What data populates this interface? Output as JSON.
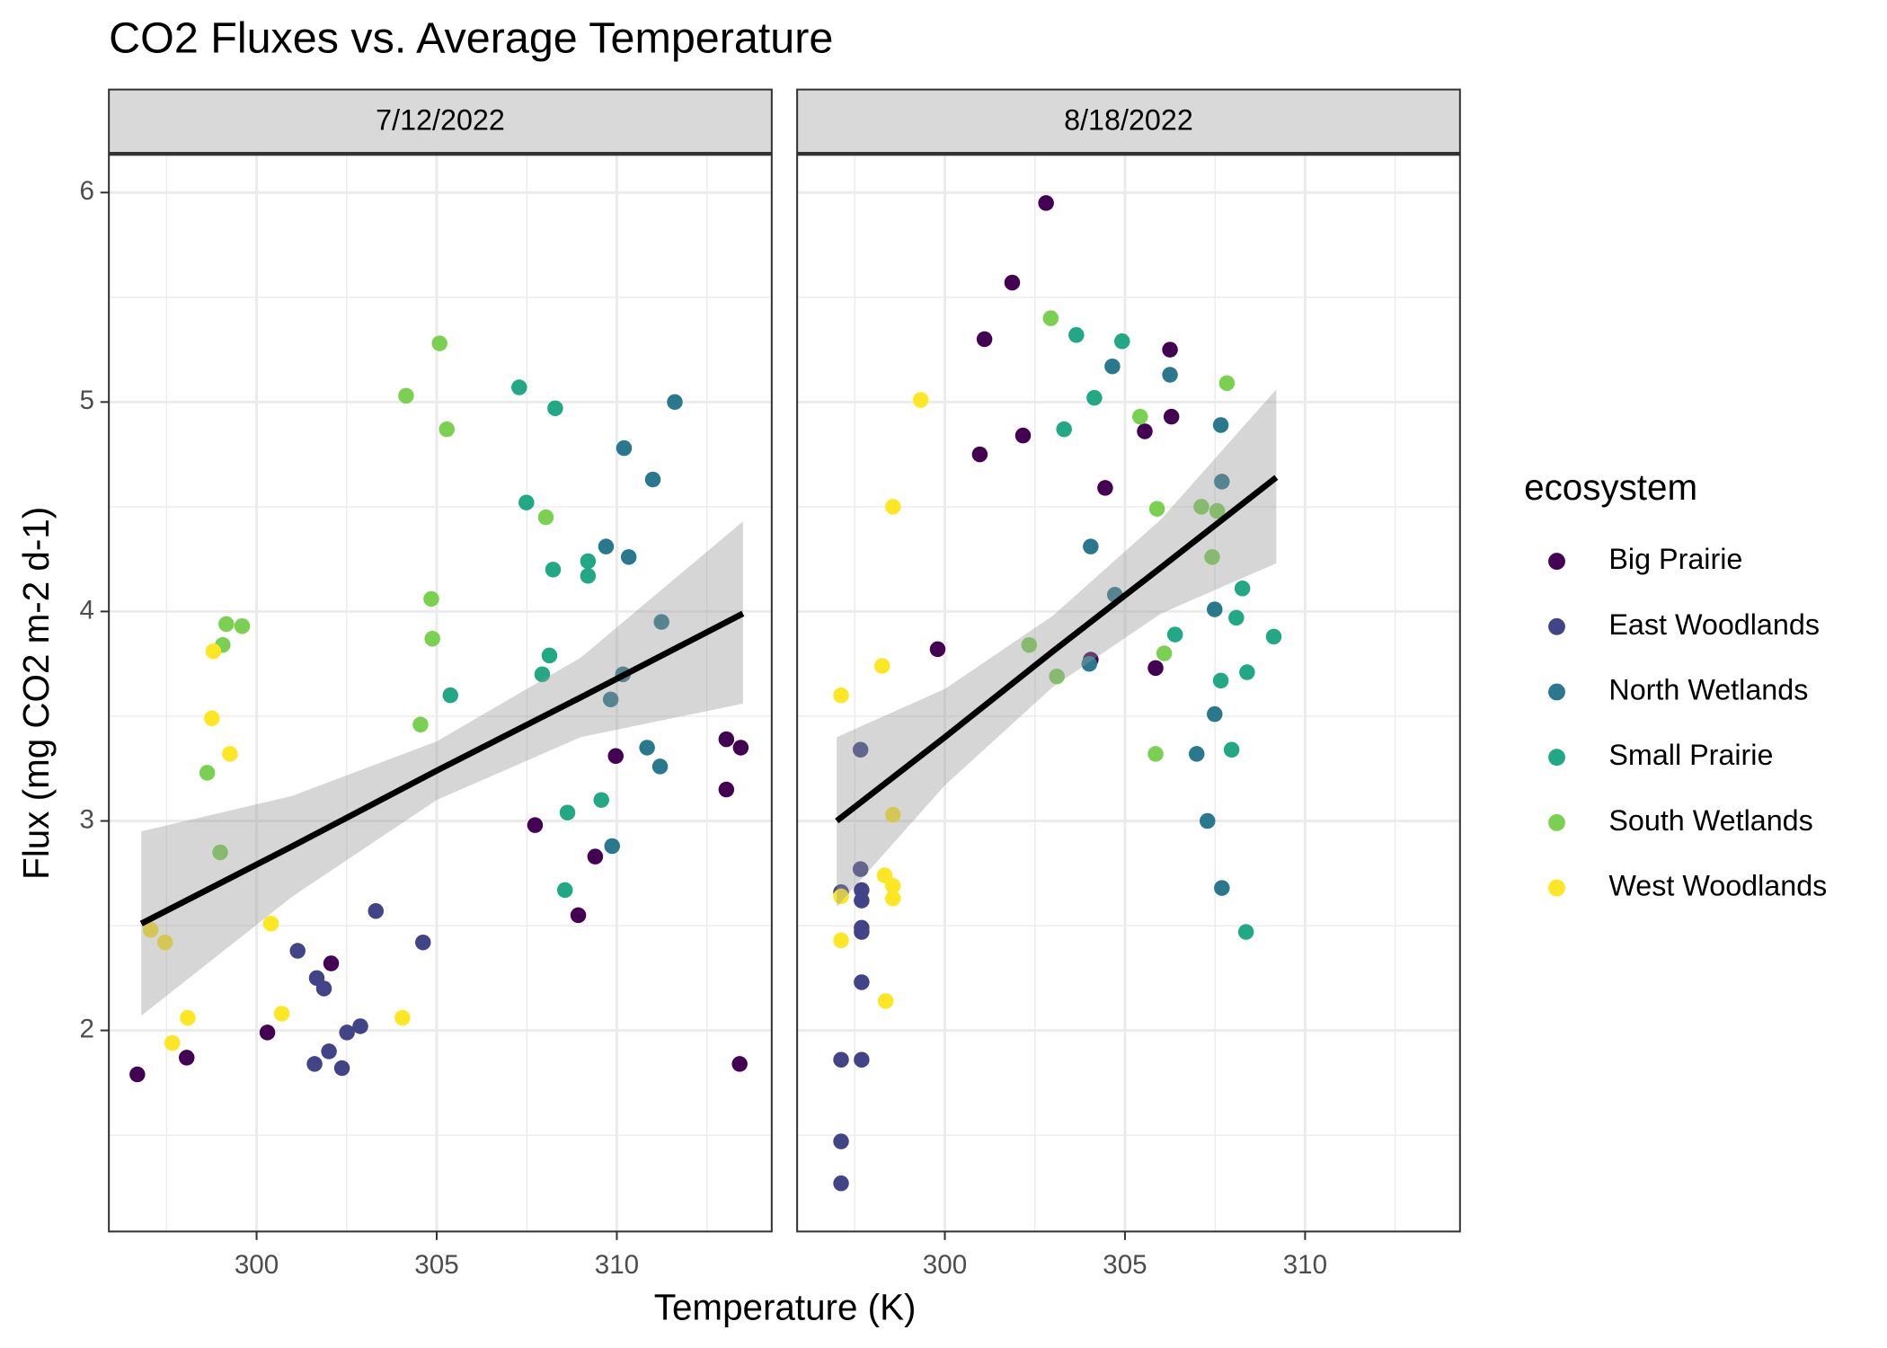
{
  "chart_data": {
    "type": "scatter",
    "title": "CO2 Fluxes vs. Average Temperature",
    "x_label": "Temperature (K)",
    "y_label": "Flux (mg CO2 m-2 d-1)",
    "legend_title": "ecosystem",
    "legend_position": "right",
    "grid": true,
    "xlim": [
      295.9,
      314.3
    ],
    "ylim": [
      1.04,
      6.18
    ],
    "xticks": [
      300,
      305,
      310
    ],
    "yticks": [
      2,
      3,
      4,
      5,
      6
    ],
    "fit_color": "#000000",
    "band_color": "#999999",
    "series": [
      {
        "name": "Big Prairie",
        "color": "#440154"
      },
      {
        "name": "East Woodlands",
        "color": "#414487"
      },
      {
        "name": "North Wetlands",
        "color": "#2A788E"
      },
      {
        "name": "Small Prairie",
        "color": "#22A884"
      },
      {
        "name": "South Wetlands",
        "color": "#7AD151"
      },
      {
        "name": "West Woodlands",
        "color": "#FDE725"
      }
    ],
    "facets": [
      {
        "label": "7/12/2022",
        "series": [
          {
            "x": [
              296.69,
              298.06,
              300.3,
              302.07,
              307.73,
              308.93,
              309.4,
              309.97,
              313.04,
              313.04,
              313.44,
              313.41
            ],
            "values": [
              1.79,
              1.87,
              1.99,
              2.32,
              2.98,
              2.55,
              2.83,
              3.31,
              3.39,
              3.15,
              3.35,
              1.84
            ]
          },
          {
            "x": [
              301.14,
              301.67,
              301.87,
              301.61,
              302.01,
              302.37,
              302.51,
              302.88,
              303.31,
              304.62
            ],
            "values": [
              2.38,
              2.25,
              2.2,
              1.84,
              1.9,
              1.82,
              1.99,
              2.02,
              2.57,
              2.42
            ]
          },
          {
            "x": [
              310.2,
              311.0,
              311.61,
              309.7,
              310.33,
              311.24,
              310.17,
              309.83,
              311.2,
              310.84,
              309.87
            ],
            "values": [
              4.78,
              4.63,
              5.0,
              4.31,
              4.26,
              3.95,
              3.7,
              3.58,
              3.26,
              3.35,
              2.88
            ]
          },
          {
            "x": [
              307.29,
              308.29,
              307.49,
              308.23,
              309.2,
              309.2,
              308.13,
              307.93,
              305.38,
              308.63,
              309.57,
              308.56
            ],
            "values": [
              5.07,
              4.97,
              4.52,
              4.2,
              4.24,
              4.17,
              3.79,
              3.7,
              3.6,
              3.04,
              3.1,
              2.67
            ]
          },
          {
            "x": [
              305.08,
              304.15,
              305.28,
              308.03,
              304.85,
              304.88,
              304.55,
              299.16,
              299.6,
              299.06,
              298.63,
              298.99
            ],
            "values": [
              5.28,
              5.03,
              4.87,
              4.45,
              4.06,
              3.87,
              3.46,
              3.94,
              3.93,
              3.84,
              3.23,
              2.85
            ]
          },
          {
            "x": [
              298.8,
              298.76,
              299.26,
              297.06,
              297.46,
              298.09,
              297.66,
              300.7,
              300.4,
              304.05
            ],
            "values": [
              3.81,
              3.49,
              3.32,
              2.48,
              2.42,
              2.06,
              1.94,
              2.08,
              2.51,
              2.06
            ]
          }
        ],
        "fit": {
          "x": [
            296.8,
            301,
            305,
            309,
            313.5
          ],
          "values": [
            2.51,
            2.88,
            3.24,
            3.59,
            3.99
          ],
          "lower": [
            2.07,
            2.64,
            3.1,
            3.4,
            3.56
          ],
          "upper": [
            2.95,
            3.12,
            3.38,
            3.78,
            4.43
          ]
        }
      },
      {
        "label": "8/18/2022",
        "series": [
          {
            "x": [
              302.81,
              301.87,
              301.1,
              300.97,
              302.17,
              306.25,
              306.29,
              305.55,
              304.45,
              299.8,
              305.85,
              304.05
            ],
            "values": [
              5.95,
              5.57,
              5.3,
              4.75,
              4.84,
              5.25,
              4.93,
              4.86,
              4.59,
              3.82,
              3.73,
              3.77
            ]
          },
          {
            "x": [
              297.66,
              297.66,
              297.69,
              297.69,
              297.69,
              297.69,
              297.69,
              297.12,
              297.69,
              297.12,
              297.12,
              297.12
            ],
            "values": [
              3.34,
              2.77,
              2.67,
              2.62,
              2.49,
              2.47,
              2.23,
              1.86,
              1.86,
              1.47,
              1.27,
              2.66
            ]
          },
          {
            "x": [
              304.65,
              306.25,
              307.66,
              307.69,
              304.05,
              304.72,
              307.49,
              307.49,
              306.99,
              307.29,
              307.69,
              304.01
            ],
            "values": [
              5.17,
              5.13,
              4.89,
              4.62,
              4.31,
              4.08,
              4.01,
              3.51,
              3.32,
              3.0,
              2.68,
              3.75
            ]
          },
          {
            "x": [
              303.65,
              304.92,
              304.15,
              303.31,
              308.26,
              308.09,
              306.39,
              309.13,
              308.39,
              307.66,
              307.96,
              308.36
            ],
            "values": [
              5.32,
              5.29,
              5.02,
              4.87,
              4.11,
              3.97,
              3.89,
              3.88,
              3.71,
              3.67,
              3.34,
              2.47
            ]
          },
          {
            "x": [
              302.94,
              307.83,
              305.42,
              305.89,
              307.12,
              307.56,
              307.42,
              302.34,
              303.11,
              306.09,
              305.85
            ],
            "values": [
              5.4,
              5.09,
              4.93,
              4.49,
              4.5,
              4.48,
              4.26,
              3.84,
              3.69,
              3.8,
              3.32
            ]
          },
          {
            "x": [
              299.33,
              298.56,
              298.26,
              297.12,
              298.56,
              298.33,
              298.56,
              298.56,
              297.12,
              297.12,
              298.36
            ],
            "values": [
              5.01,
              4.5,
              3.74,
              3.6,
              3.03,
              2.74,
              2.69,
              2.63,
              2.64,
              2.43,
              2.14
            ]
          }
        ],
        "fit": {
          "x": [
            297,
            300,
            303,
            306,
            309.2
          ],
          "values": [
            3.0,
            3.4,
            3.81,
            4.21,
            4.64
          ],
          "lower": [
            2.59,
            3.17,
            3.64,
            3.99,
            4.23
          ],
          "upper": [
            3.4,
            3.63,
            3.98,
            4.44,
            5.06
          ]
        }
      }
    ]
  }
}
